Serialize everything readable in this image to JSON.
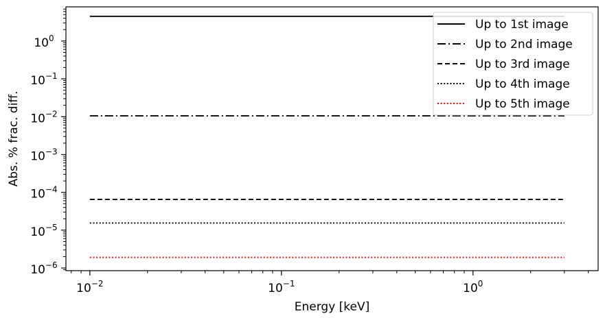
{
  "chart_data": {
    "type": "line",
    "xlabel": "Energy [keV]",
    "ylabel": "Abs. % frac. diff.",
    "xscale": "log",
    "yscale": "log",
    "xlim": [
      0.0075,
      4.5
    ],
    "ylim": [
      8.5e-07,
      8
    ],
    "x": [
      0.01,
      3.0
    ],
    "x_ticks": [
      {
        "value": 0.01,
        "base": "10",
        "exp": "−2"
      },
      {
        "value": 0.1,
        "base": "10",
        "exp": "−1"
      },
      {
        "value": 1,
        "base": "10",
        "exp": "0"
      }
    ],
    "y_ticks": [
      {
        "value": 1,
        "base": "10",
        "exp": "0"
      },
      {
        "value": 0.1,
        "base": "10",
        "exp": "−1"
      },
      {
        "value": 0.01,
        "base": "10",
        "exp": "−2"
      },
      {
        "value": 0.001,
        "base": "10",
        "exp": "−3"
      },
      {
        "value": 0.0001,
        "base": "10",
        "exp": "−4"
      },
      {
        "value": 1e-05,
        "base": "10",
        "exp": "−5"
      },
      {
        "value": 1e-06,
        "base": "10",
        "exp": "−6"
      }
    ],
    "grid": false,
    "legend_position": "top-right",
    "series": [
      {
        "name": "Up to 1st image",
        "values": [
          4.5,
          4.5
        ],
        "color": "#000000",
        "style": "solid"
      },
      {
        "name": "Up to 2nd image",
        "values": [
          0.0105,
          0.0105
        ],
        "color": "#000000",
        "style": "dashdot"
      },
      {
        "name": "Up to 3rd image",
        "values": [
          6.5e-05,
          6.5e-05
        ],
        "color": "#000000",
        "style": "dashed"
      },
      {
        "name": "Up to 4th image",
        "values": [
          1.55e-05,
          1.55e-05
        ],
        "color": "#000000",
        "style": "dotted"
      },
      {
        "name": "Up to 5th image",
        "values": [
          1.9e-06,
          1.9e-06
        ],
        "color": "#ff0000",
        "style": "dotted"
      }
    ]
  }
}
